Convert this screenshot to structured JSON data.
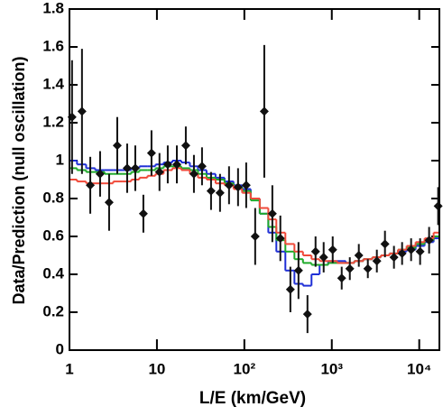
{
  "chart_data": {
    "type": "scatter",
    "x_label": "L/E (km/GeV)",
    "y_label": "Data/Prediction (null oscillation)",
    "x_log": true,
    "xlim": [
      1,
      17000
    ],
    "xticks": [
      1,
      10,
      {
        "value": 100,
        "label": "10²"
      },
      {
        "value": 1000,
        "label": "10³"
      },
      {
        "value": 10000,
        "label": "10⁴"
      }
    ],
    "ylim": [
      0,
      1.8
    ],
    "yticks": [
      0,
      0.2,
      0.4,
      0.6,
      0.8,
      1,
      1.2,
      1.4,
      1.6,
      1.8
    ],
    "x": [
      1.07,
      1.39,
      1.73,
      2.24,
      2.84,
      3.52,
      4.57,
      5.66,
      7.0,
      8.67,
      10.7,
      13.3,
      16.9,
      21.4,
      26.5,
      32.8,
      41.6,
      52.7,
      66.8,
      84.7,
      105,
      133,
      169,
      209,
      258,
      336,
      416,
      527,
      652,
      807,
      1024,
      1298,
      1607,
      2037,
      2583,
      3275,
      4055,
      5140,
      6368,
      8073,
      10233,
      12970,
      16450
    ],
    "series": [
      {
        "type": "step",
        "color": "#1f2fd6",
        "values": [
          1.0,
          0.98,
          0.96,
          0.95,
          0.95,
          0.95,
          0.95,
          0.96,
          0.97,
          0.97,
          0.98,
          0.99,
          1.0,
          0.99,
          0.97,
          0.95,
          0.93,
          0.91,
          0.89,
          0.87,
          0.85,
          0.8,
          0.72,
          0.62,
          0.52,
          0.42,
          0.35,
          0.34,
          0.4,
          0.45,
          0.47,
          0.47,
          0.46,
          0.47,
          0.48,
          0.49,
          0.5,
          0.51,
          0.52,
          0.53,
          0.55,
          0.57,
          0.59
        ]
      },
      {
        "type": "step",
        "color": "#1faa2a",
        "values": [
          0.96,
          0.95,
          0.94,
          0.94,
          0.93,
          0.93,
          0.93,
          0.94,
          0.95,
          0.95,
          0.96,
          0.97,
          0.97,
          0.96,
          0.95,
          0.93,
          0.91,
          0.9,
          0.88,
          0.86,
          0.84,
          0.79,
          0.72,
          0.65,
          0.58,
          0.52,
          0.48,
          0.46,
          0.45,
          0.45,
          0.46,
          0.46,
          0.46,
          0.47,
          0.48,
          0.49,
          0.5,
          0.51,
          0.53,
          0.54,
          0.56,
          0.58,
          0.6
        ]
      },
      {
        "type": "step",
        "color": "#f04a3a",
        "values": [
          0.9,
          0.89,
          0.88,
          0.88,
          0.88,
          0.89,
          0.89,
          0.9,
          0.91,
          0.92,
          0.93,
          0.95,
          0.96,
          0.95,
          0.93,
          0.91,
          0.9,
          0.88,
          0.87,
          0.85,
          0.83,
          0.8,
          0.75,
          0.69,
          0.62,
          0.56,
          0.52,
          0.5,
          0.48,
          0.47,
          0.47,
          0.46,
          0.46,
          0.47,
          0.48,
          0.49,
          0.5,
          0.51,
          0.53,
          0.55,
          0.57,
          0.59,
          0.62
        ]
      },
      {
        "type": "errorbar",
        "color": "#111111",
        "values": [
          1.23,
          1.26,
          0.87,
          0.93,
          0.78,
          1.08,
          0.96,
          0.96,
          0.72,
          1.04,
          0.94,
          0.98,
          0.98,
          1.08,
          0.93,
          0.97,
          0.84,
          0.83,
          0.87,
          0.86,
          0.87,
          0.6,
          1.26,
          0.72,
          0.59,
          0.32,
          0.42,
          0.19,
          0.52,
          0.49,
          0.53,
          0.38,
          0.43,
          0.5,
          0.43,
          0.47,
          0.56,
          0.49,
          0.51,
          0.53,
          0.52,
          0.58,
          0.76
        ],
        "errors": [
          0.3,
          0.33,
          0.15,
          0.12,
          0.15,
          0.15,
          0.13,
          0.12,
          0.1,
          0.12,
          0.1,
          0.1,
          0.1,
          0.1,
          0.1,
          0.1,
          0.1,
          0.1,
          0.1,
          0.1,
          0.12,
          0.15,
          0.35,
          0.15,
          0.12,
          0.12,
          0.15,
          0.1,
          0.08,
          0.08,
          0.07,
          0.06,
          0.06,
          0.06,
          0.05,
          0.06,
          0.07,
          0.06,
          0.06,
          0.06,
          0.07,
          0.07,
          0.1
        ]
      }
    ]
  }
}
